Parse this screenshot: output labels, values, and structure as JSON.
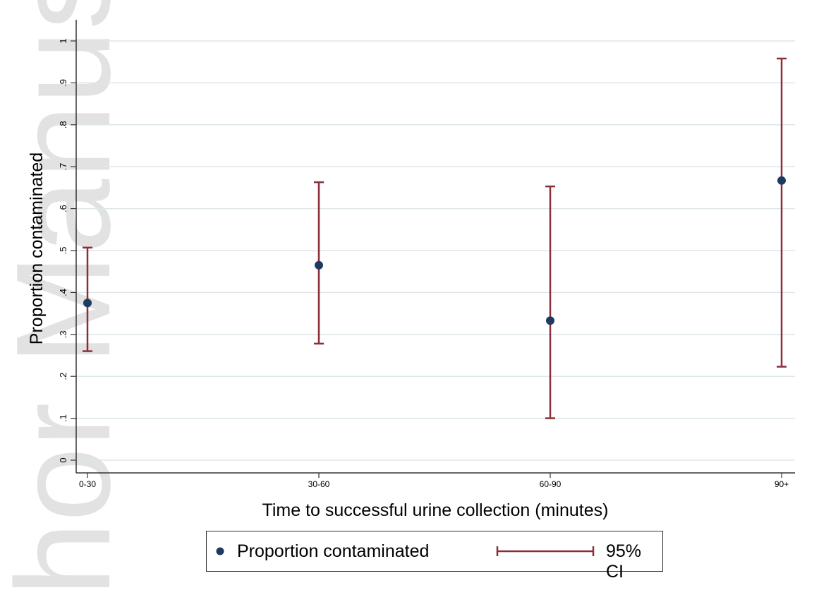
{
  "chart_data": {
    "type": "scatter",
    "xlabel": "Time to successful urine collection (minutes)",
    "ylabel": "Proportion contaminated",
    "categories": [
      "0-30",
      "30-60",
      "60-90",
      "90+"
    ],
    "y_ticks": [
      {
        "value": 0,
        "label": "0"
      },
      {
        "value": 0.1,
        "label": ".1"
      },
      {
        "value": 0.2,
        "label": ".2"
      },
      {
        "value": 0.3,
        "label": ".3"
      },
      {
        "value": 0.4,
        "label": ".4"
      },
      {
        "value": 0.5,
        "label": ".5"
      },
      {
        "value": 0.6,
        "label": ".6"
      },
      {
        "value": 0.7,
        "label": ".7"
      },
      {
        "value": 0.8,
        "label": ".8"
      },
      {
        "value": 0.9,
        "label": ".9"
      },
      {
        "value": 1,
        "label": "1"
      }
    ],
    "ylim": [
      -0.03,
      1.05
    ],
    "grid": true,
    "legend_position": "bottom",
    "series": [
      {
        "name": "Proportion contaminated",
        "values": [
          0.375,
          0.465,
          0.333,
          0.667
        ],
        "color": "#1f3a5f"
      },
      {
        "name": "95% CI",
        "lower": [
          0.26,
          0.278,
          0.1,
          0.223
        ],
        "upper": [
          0.507,
          0.663,
          0.653,
          0.958
        ],
        "color": "#8b2e3a"
      }
    ],
    "watermark": "hor Manusc"
  }
}
